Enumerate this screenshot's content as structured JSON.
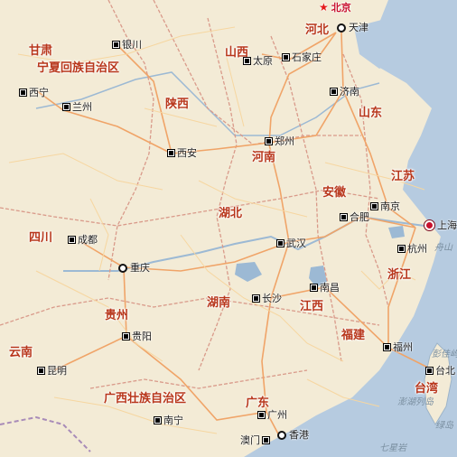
{
  "map": {
    "colors": {
      "land": "#f3ebd6",
      "sea": "#b6cbe0",
      "major_road": "#f0a468",
      "minor_road": "#f6d6a0",
      "province_border": "#d99a8a",
      "province_label": "#b8361b",
      "capital_label": "#c8102e"
    },
    "provinces": [
      {
        "name": "甘肃"
      },
      {
        "name": "宁夏回族自治区"
      },
      {
        "name": "山西"
      },
      {
        "name": "河北"
      },
      {
        "name": "陕西"
      },
      {
        "name": "山东"
      },
      {
        "name": "河南"
      },
      {
        "name": "江苏"
      },
      {
        "name": "安徽"
      },
      {
        "name": "湖北"
      },
      {
        "name": "四川"
      },
      {
        "name": "浙江"
      },
      {
        "name": "湖南"
      },
      {
        "name": "江西"
      },
      {
        "name": "贵州"
      },
      {
        "name": "福建"
      },
      {
        "name": "云南"
      },
      {
        "name": "台湾"
      },
      {
        "name": "广西壮族自治区"
      },
      {
        "name": "广东"
      }
    ],
    "cities": [
      {
        "name": "北京",
        "marker": "star"
      },
      {
        "name": "天津",
        "marker": "dot"
      },
      {
        "name": "银川",
        "marker": "square"
      },
      {
        "name": "太原",
        "marker": "square"
      },
      {
        "name": "石家庄",
        "marker": "square"
      },
      {
        "name": "西宁",
        "marker": "square"
      },
      {
        "name": "兰州",
        "marker": "square"
      },
      {
        "name": "济南",
        "marker": "square"
      },
      {
        "name": "郑州",
        "marker": "square"
      },
      {
        "name": "西安",
        "marker": "square"
      },
      {
        "name": "南京",
        "marker": "square"
      },
      {
        "name": "合肥",
        "marker": "square"
      },
      {
        "name": "上海",
        "marker": "dot-red"
      },
      {
        "name": "武汉",
        "marker": "square"
      },
      {
        "name": "成都",
        "marker": "square"
      },
      {
        "name": "杭州",
        "marker": "square"
      },
      {
        "name": "重庆",
        "marker": "dot"
      },
      {
        "name": "长沙",
        "marker": "square"
      },
      {
        "name": "南昌",
        "marker": "square"
      },
      {
        "name": "贵阳",
        "marker": "square"
      },
      {
        "name": "福州",
        "marker": "square"
      },
      {
        "name": "昆明",
        "marker": "square"
      },
      {
        "name": "台北",
        "marker": "square"
      },
      {
        "name": "广州",
        "marker": "square"
      },
      {
        "name": "南宁",
        "marker": "square"
      },
      {
        "name": "澳门",
        "marker": "square"
      },
      {
        "name": "香港",
        "marker": "dot"
      }
    ],
    "sea_features": [
      {
        "name": "舟山"
      },
      {
        "name": "彭佳屿"
      },
      {
        "name": "澎湖列岛"
      },
      {
        "name": "绿岛"
      },
      {
        "name": "七星岩"
      }
    ]
  }
}
